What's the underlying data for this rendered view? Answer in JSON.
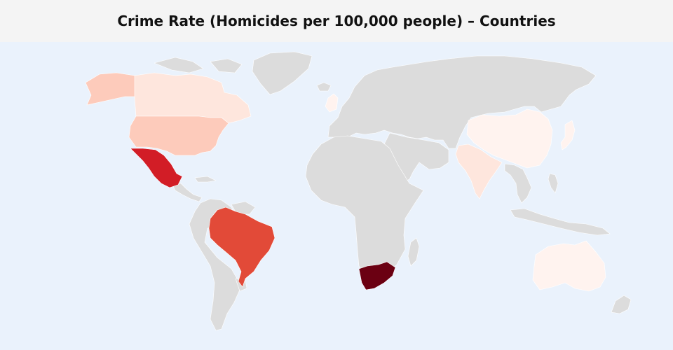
{
  "title": "Crime Rate (Homicides per 100,000 people) – Countries",
  "colors": {
    "ocean": "#eaf2fc",
    "header": "#f4f4f4",
    "no_data": "#dcdcdc",
    "scale": [
      "#fff3ef",
      "#fee6dd",
      "#fdcbbb",
      "#e24a38",
      "#d21d26",
      "#6b0012"
    ]
  },
  "highlighted_countries": [
    {
      "name": "United States",
      "color": "#fdcbbb"
    },
    {
      "name": "Canada",
      "color": "#fee6dd"
    },
    {
      "name": "Mexico",
      "color": "#d21d26"
    },
    {
      "name": "Brazil",
      "color": "#e24a38"
    },
    {
      "name": "South Africa",
      "color": "#6b0012"
    },
    {
      "name": "India",
      "color": "#fee6dd"
    },
    {
      "name": "China",
      "color": "#fff3ef"
    },
    {
      "name": "Japan",
      "color": "#fff3ef"
    },
    {
      "name": "Australia",
      "color": "#fff3ef"
    },
    {
      "name": "United Kingdom",
      "color": "#fff3ef"
    }
  ]
}
